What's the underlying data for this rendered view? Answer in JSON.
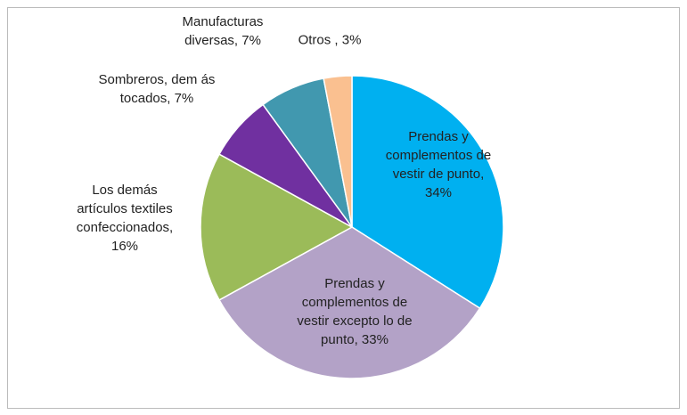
{
  "chart_data": {
    "type": "pie",
    "categories": [
      "Prendas y complementos de vestir de punto, 34%",
      "Prendas y complementos de vestir excepto lo de punto, 33%",
      "Los demás artículos textiles confeccionados, 16%",
      "Sombreros, dem ás tocados, 7%",
      "Manufacturas diversas, 7%",
      "Otros , 3%"
    ],
    "values": [
      34,
      33,
      16,
      7,
      7,
      3
    ],
    "colors": [
      "#00b0f0",
      "#b3a2c7",
      "#9bbb59",
      "#7030a0",
      "#4198af",
      "#fac090"
    ]
  }
}
